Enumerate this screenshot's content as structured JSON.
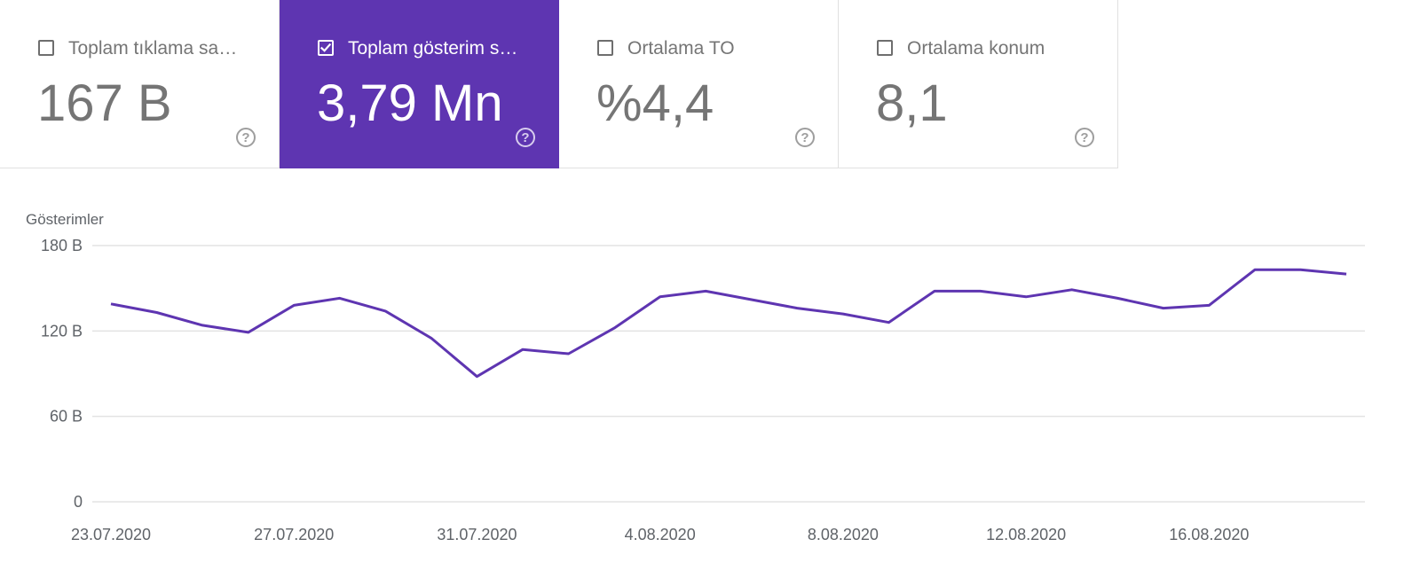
{
  "metric_cards": [
    {
      "label": "Toplam tıklama sayısı",
      "value": "167 B",
      "checked": false
    },
    {
      "label": "Toplam gösterim sayısı",
      "value": "3,79 Mn",
      "checked": true
    },
    {
      "label": "Ortalama TO",
      "value": "%4,4",
      "checked": false
    },
    {
      "label": "Ortalama konum",
      "value": "8,1",
      "checked": false
    }
  ],
  "colors": {
    "accent": "#5e35b1",
    "line": "#5e35b1"
  },
  "chart_data": {
    "type": "line",
    "ylabel": "Gösterimler",
    "y_ticks": [
      "0",
      "60 B",
      "120 B",
      "180 B"
    ],
    "y_tick_values": [
      0,
      60,
      120,
      180
    ],
    "ylim": [
      0,
      180
    ],
    "x_tick_labels": [
      "23.07.2020",
      "27.07.2020",
      "31.07.2020",
      "4.08.2020",
      "8.08.2020",
      "12.08.2020",
      "16.08.2020"
    ],
    "x_tick_indices": [
      0,
      4,
      8,
      12,
      16,
      20,
      24
    ],
    "grid": true,
    "series": [
      {
        "values": [
          139,
          133,
          124,
          119,
          138,
          143,
          134,
          115,
          88,
          107,
          104,
          122,
          144,
          148,
          142,
          136,
          132,
          126,
          148,
          148,
          144,
          149,
          143,
          136,
          138,
          163,
          163,
          160
        ]
      }
    ]
  }
}
